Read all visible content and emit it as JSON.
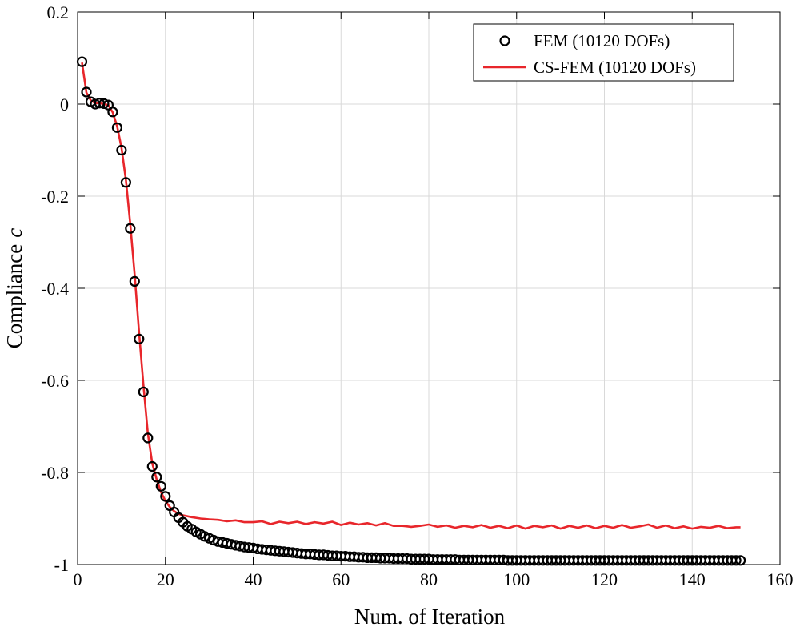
{
  "chart_data": {
    "type": "line",
    "xlabel": "Num.  of Iteration",
    "ylabel": "Compliance",
    "ylabel_symbol": "c",
    "xlim": [
      0,
      160
    ],
    "ylim": [
      -1,
      0.2
    ],
    "xticks": [
      0,
      20,
      40,
      60,
      80,
      100,
      120,
      140,
      160
    ],
    "yticks": [
      -1,
      -0.8,
      -0.6,
      -0.4,
      -0.2,
      0,
      0.2
    ],
    "xtick_labels": [
      "0",
      "20",
      "40",
      "60",
      "80",
      "100",
      "120",
      "140",
      "160"
    ],
    "ytick_labels": [
      "-1",
      "-0.8",
      "-0.6",
      "-0.4",
      "-0.2",
      "0",
      "0.2"
    ],
    "grid": true,
    "legend_position": "top-right",
    "series": [
      {
        "name": "FEM (10120 DOFs)",
        "style": "markers",
        "marker": "circle",
        "color": "#000000",
        "x": [
          1,
          2,
          3,
          4,
          5,
          6,
          7,
          8,
          9,
          10,
          11,
          12,
          13,
          14,
          15,
          16,
          17,
          18,
          19,
          20,
          21,
          22,
          23,
          24,
          25,
          26,
          27,
          28,
          29,
          30,
          31,
          32,
          33,
          34,
          35,
          36,
          37,
          38,
          39,
          40,
          41,
          42,
          43,
          44,
          45,
          46,
          47,
          48,
          49,
          50,
          51,
          52,
          53,
          54,
          55,
          56,
          57,
          58,
          59,
          60,
          61,
          62,
          63,
          64,
          65,
          66,
          67,
          68,
          69,
          70,
          71,
          72,
          73,
          74,
          75,
          76,
          77,
          78,
          79,
          80,
          81,
          82,
          83,
          84,
          85,
          86,
          87,
          88,
          89,
          90,
          91,
          92,
          93,
          94,
          95,
          96,
          97,
          98,
          99,
          100,
          101,
          102,
          103,
          104,
          105,
          106,
          107,
          108,
          109,
          110,
          111,
          112,
          113,
          114,
          115,
          116,
          117,
          118,
          119,
          120,
          121,
          122,
          123,
          124,
          125,
          126,
          127,
          128,
          129,
          130,
          131,
          132,
          133,
          134,
          135,
          136,
          137,
          138,
          139,
          140,
          141,
          142,
          143,
          144,
          145,
          146,
          147,
          148,
          149,
          150,
          151
        ],
        "y": [
          0.092,
          0.026,
          0.005,
          0.0,
          0.002,
          0.001,
          -0.002,
          -0.017,
          -0.051,
          -0.1,
          -0.17,
          -0.27,
          -0.385,
          -0.51,
          -0.625,
          -0.725,
          -0.787,
          -0.81,
          -0.83,
          -0.852,
          -0.872,
          -0.886,
          -0.898,
          -0.908,
          -0.917,
          -0.923,
          -0.929,
          -0.934,
          -0.939,
          -0.943,
          -0.947,
          -0.95,
          -0.952,
          -0.954,
          -0.956,
          -0.958,
          -0.96,
          -0.962,
          -0.963,
          -0.964,
          -0.966,
          -0.967,
          -0.968,
          -0.969,
          -0.97,
          -0.971,
          -0.972,
          -0.973,
          -0.974,
          -0.975,
          -0.976,
          -0.977,
          -0.977,
          -0.978,
          -0.979,
          -0.979,
          -0.98,
          -0.981,
          -0.981,
          -0.982,
          -0.982,
          -0.983,
          -0.983,
          -0.984,
          -0.984,
          -0.985,
          -0.985,
          -0.985,
          -0.986,
          -0.986,
          -0.986,
          -0.987,
          -0.987,
          -0.987,
          -0.987,
          -0.988,
          -0.988,
          -0.988,
          -0.988,
          -0.988,
          -0.989,
          -0.989,
          -0.989,
          -0.989,
          -0.989,
          -0.989,
          -0.99,
          -0.99,
          -0.99,
          -0.99,
          -0.99,
          -0.99,
          -0.99,
          -0.99,
          -0.99,
          -0.99,
          -0.99,
          -0.991,
          -0.991,
          -0.991,
          -0.991,
          -0.991,
          -0.991,
          -0.991,
          -0.991,
          -0.991,
          -0.991,
          -0.991,
          -0.991,
          -0.991,
          -0.991,
          -0.991,
          -0.991,
          -0.991,
          -0.991,
          -0.991,
          -0.991,
          -0.991,
          -0.991,
          -0.991,
          -0.991,
          -0.991,
          -0.991,
          -0.991,
          -0.991,
          -0.991,
          -0.991,
          -0.991,
          -0.991,
          -0.991,
          -0.991,
          -0.991,
          -0.991,
          -0.991,
          -0.991,
          -0.991,
          -0.991,
          -0.991,
          -0.991,
          -0.991,
          -0.991,
          -0.991,
          -0.991,
          -0.991,
          -0.991,
          -0.991,
          -0.991,
          -0.991,
          -0.991,
          -0.991,
          -0.991
        ]
      },
      {
        "name": "CS-FEM (10120 DOFs)",
        "style": "line",
        "color": "#e8262b",
        "x": [
          1,
          2,
          3,
          4,
          5,
          6,
          7,
          8,
          9,
          10,
          11,
          12,
          13,
          14,
          15,
          16,
          17,
          18,
          19,
          20,
          21,
          22,
          23,
          24,
          26,
          28,
          30,
          32,
          34,
          36,
          38,
          40,
          42,
          44,
          46,
          48,
          50,
          52,
          54,
          56,
          58,
          60,
          62,
          64,
          66,
          68,
          70,
          72,
          74,
          76,
          78,
          80,
          82,
          84,
          86,
          88,
          90,
          92,
          94,
          96,
          98,
          100,
          102,
          104,
          106,
          108,
          110,
          112,
          114,
          116,
          118,
          120,
          122,
          124,
          126,
          128,
          130,
          132,
          134,
          136,
          138,
          140,
          142,
          144,
          146,
          148,
          150,
          151
        ],
        "y": [
          0.09,
          0.025,
          0.008,
          0.002,
          0.002,
          0.0,
          -0.002,
          -0.018,
          -0.048,
          -0.095,
          -0.165,
          -0.26,
          -0.37,
          -0.495,
          -0.61,
          -0.715,
          -0.78,
          -0.815,
          -0.843,
          -0.862,
          -0.875,
          -0.884,
          -0.89,
          -0.893,
          -0.897,
          -0.9,
          -0.902,
          -0.903,
          -0.906,
          -0.904,
          -0.908,
          -0.908,
          -0.906,
          -0.912,
          -0.907,
          -0.91,
          -0.907,
          -0.912,
          -0.908,
          -0.911,
          -0.907,
          -0.914,
          -0.909,
          -0.913,
          -0.91,
          -0.915,
          -0.91,
          -0.916,
          -0.916,
          -0.918,
          -0.916,
          -0.913,
          -0.918,
          -0.915,
          -0.92,
          -0.916,
          -0.919,
          -0.914,
          -0.92,
          -0.916,
          -0.921,
          -0.915,
          -0.922,
          -0.916,
          -0.919,
          -0.915,
          -0.922,
          -0.916,
          -0.92,
          -0.915,
          -0.921,
          -0.916,
          -0.92,
          -0.914,
          -0.92,
          -0.917,
          -0.913,
          -0.92,
          -0.915,
          -0.921,
          -0.917,
          -0.922,
          -0.918,
          -0.92,
          -0.916,
          -0.921,
          -0.919,
          -0.919
        ]
      }
    ]
  }
}
